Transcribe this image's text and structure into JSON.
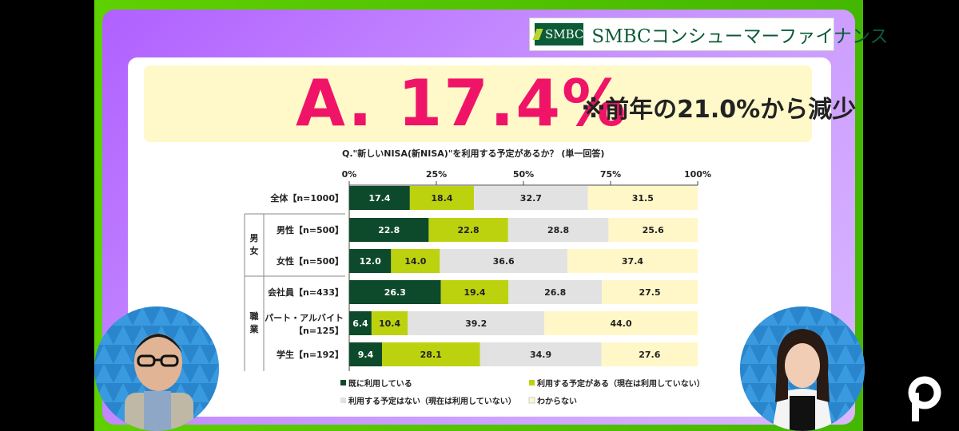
{
  "logo": {
    "mark": "SMBC",
    "text": "SMBCコンシューマーファイナンス"
  },
  "answer": {
    "main": "A. 17.4%",
    "note": "※前年の21.0%から減少"
  },
  "question": "Q.\"新しいNISA(新NISA)\"を利用する予定があるか？ (単一回答)",
  "groups": [
    {
      "label": "男\n女"
    },
    {
      "label": "職\n業"
    }
  ],
  "colors": {
    "s1": "#0d4a2b",
    "s2": "#bcd20f",
    "s3": "#e2e2e2",
    "s4": "#fff7c8"
  },
  "chart_data": {
    "type": "bar",
    "orientation": "horizontal-stacked",
    "title": "Q.\"新しいNISA(新NISA)\"を利用する予定があるか？ (単一回答)",
    "xlim": [
      0,
      100
    ],
    "ticks": [
      "0%",
      "25%",
      "50%",
      "75%",
      "100%"
    ],
    "categories": [
      "全体【n=1000】",
      "男性【n=500】",
      "女性【n=500】",
      "会社員【n=433】",
      "パート・アルバイト【n=125】",
      "学生【n=192】"
    ],
    "series": [
      {
        "name": "既に利用している",
        "values": [
          17.4,
          22.8,
          12.0,
          26.3,
          6.4,
          9.4
        ]
      },
      {
        "name": "利用する予定がある（現在は利用していない）",
        "values": [
          18.4,
          22.8,
          14.0,
          19.4,
          10.4,
          28.1
        ]
      },
      {
        "name": "利用する予定はない（現在は利用していない）",
        "values": [
          32.7,
          28.8,
          36.6,
          26.8,
          39.2,
          34.9
        ]
      },
      {
        "name": "わからない",
        "values": [
          31.5,
          25.6,
          37.4,
          27.5,
          44.0,
          27.6
        ]
      }
    ],
    "legend": "bottom"
  }
}
